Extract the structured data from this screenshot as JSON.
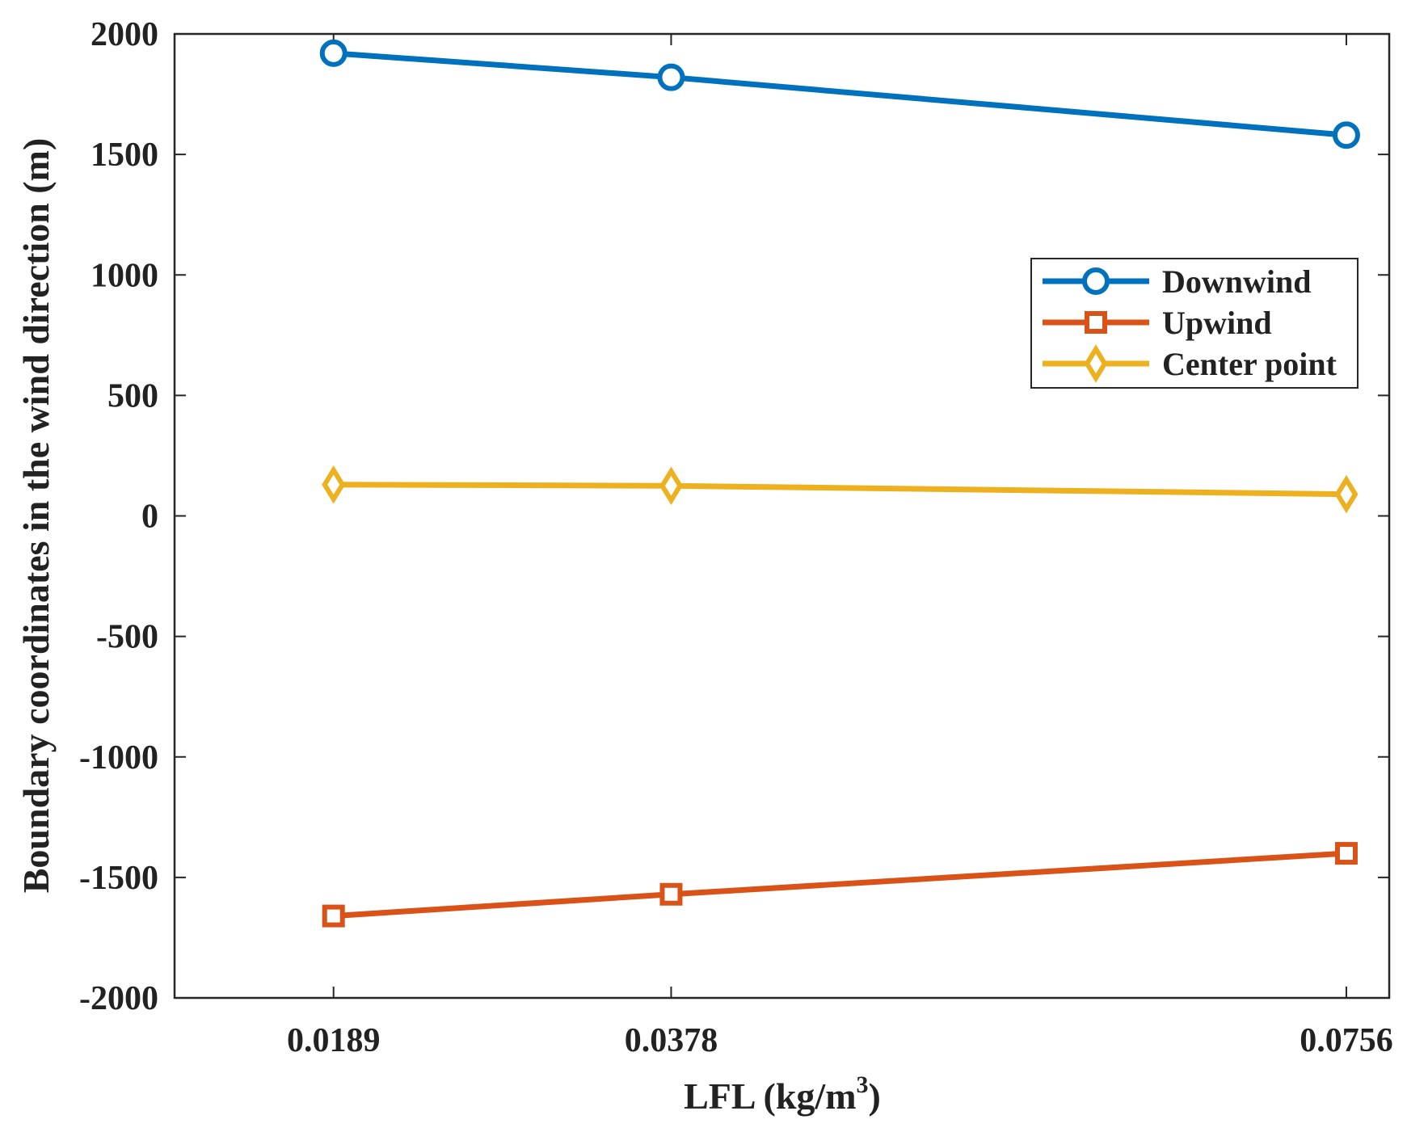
{
  "chart_data": {
    "type": "line",
    "title": "",
    "xlabel": "LFL (kg/m",
    "xlabel_superscript": "3",
    "xlabel_suffix": ")",
    "ylabel": "Boundary coordinates in the wind direction (m)",
    "x": [
      0.0189,
      0.0378,
      0.0756
    ],
    "x_tick_labels": [
      "0.0189",
      "0.0378",
      "0.0756"
    ],
    "xlim": [
      0.01,
      0.078
    ],
    "ylim": [
      -2000,
      2000
    ],
    "y_ticks": [
      2000,
      1500,
      1000,
      500,
      0,
      -500,
      -1000,
      -1500,
      -2000
    ],
    "y_tick_labels": [
      "2000",
      "1500",
      "1000",
      "500",
      "0",
      "-500",
      "-1000",
      "-1500",
      "-2000"
    ],
    "grid": false,
    "legend_position": "upper-right",
    "series": [
      {
        "name": "Downwind",
        "marker": "circle",
        "color": "#0072BD",
        "values": [
          1920,
          1820,
          1580
        ]
      },
      {
        "name": "Upwind",
        "marker": "square",
        "color": "#D95319",
        "values": [
          -1660,
          -1570,
          -1400
        ]
      },
      {
        "name": "Center point",
        "marker": "diamond",
        "color": "#EDB120",
        "values": [
          130,
          125,
          90
        ]
      }
    ]
  }
}
